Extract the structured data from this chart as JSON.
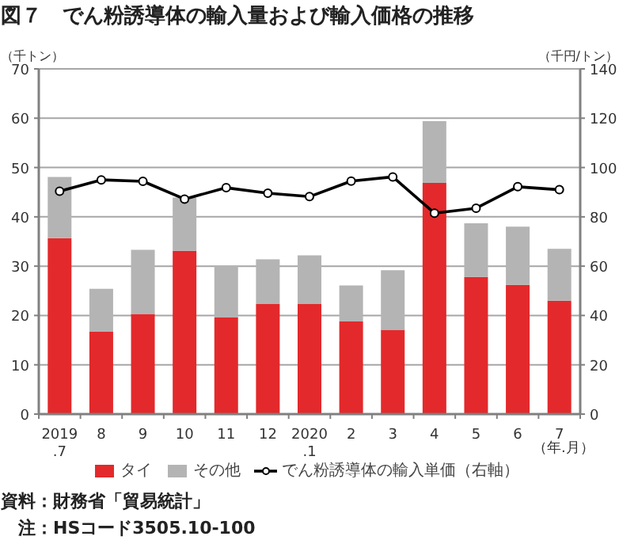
{
  "chart_data": {
    "type": "bar",
    "title": "図７　でん粉誘導体の輸入量および輸入価格の推移",
    "stacked": true,
    "categories": [
      "2019\n.7",
      "8",
      "9",
      "10",
      "11",
      "12",
      "2020\n.1",
      "2",
      "3",
      "4",
      "5",
      "6",
      "7"
    ],
    "series": [
      {
        "name": "タイ",
        "color": "#e3292b",
        "values": [
          35.7,
          16.7,
          20.3,
          33.1,
          19.6,
          22.3,
          22.3,
          18.8,
          17.1,
          46.9,
          27.8,
          26.2,
          23.0
        ]
      },
      {
        "name": "その他",
        "color": "#b4b4b4",
        "values": [
          12.4,
          8.7,
          13.0,
          10.8,
          10.5,
          9.1,
          9.9,
          7.3,
          12.1,
          12.5,
          10.9,
          11.8,
          10.5
        ]
      },
      {
        "name": "でん粉誘導体の輸入単価（右軸）",
        "type": "line",
        "axis": "y2",
        "color": "#000000",
        "marker": "circle",
        "values": [
          90.4,
          95,
          94.4,
          87.2,
          91.8,
          89.6,
          88.2,
          94.5,
          96.2,
          81.5,
          83.5,
          92.2,
          91
        ]
      }
    ],
    "ylim": [
      0,
      70
    ],
    "yticks": [
      0,
      10,
      20,
      30,
      40,
      50,
      60,
      70
    ],
    "y2lim": [
      0,
      140
    ],
    "y2ticks": [
      0,
      20,
      40,
      60,
      80,
      100,
      120,
      140
    ],
    "ylabel": "（千トン）",
    "y2label": "（千円/トン）",
    "xlabel": "（年.月）",
    "grid": "y",
    "legend": "bottom",
    "annotations": [
      "資料：財務省「貿易統計」",
      "　注：HSコード3505.10-100"
    ]
  }
}
